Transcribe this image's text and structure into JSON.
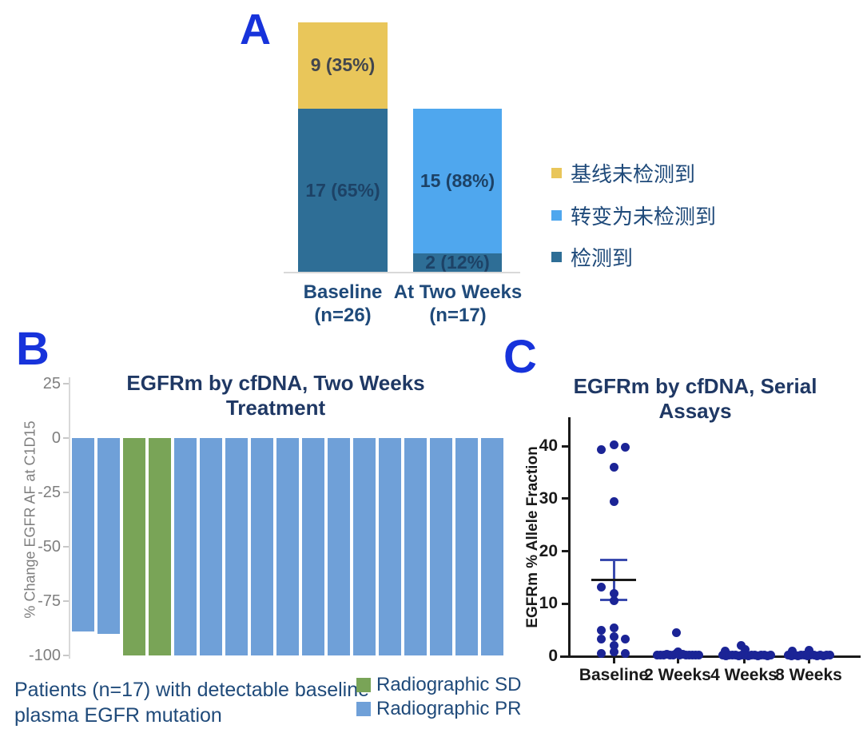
{
  "figure": {
    "panels": [
      {
        "id": "A",
        "label": "A"
      },
      {
        "id": "B",
        "label": "B"
      },
      {
        "id": "C",
        "label": "C"
      }
    ]
  },
  "colors": {
    "panel_letter": "#1733db",
    "navy_text": "#1f4a7a",
    "title_navy": "#1f3864",
    "axis_gray": "#7f7f7f",
    "light_line": "#d9d9d9",
    "tick_gray": "#c8c8c8",
    "a_yellow": "#e9c65a",
    "a_dark_blue": "#2e6e96",
    "a_light_blue": "#4fa7ee",
    "a_label_on_yellow": "#42464e",
    "a_label_navy": "#1d4266",
    "b_blue": "#6fa0d8",
    "b_green": "#79a457",
    "c_dot_navy": "#1b2496",
    "c_axis_black": "#1a1a1a",
    "c_error_blue": "#3a4aae"
  },
  "chart_data": [
    {
      "panel": "A",
      "type": "bar",
      "subtype": "stacked",
      "value_unit": "patients",
      "bars": [
        {
          "category": "Baseline",
          "n_label": "(n=26)",
          "total": 26,
          "segments": [
            {
              "series": "检测到",
              "count": 17,
              "label": "17 (65%)",
              "color_key": "a_dark_blue",
              "label_color_key": "a_label_navy"
            },
            {
              "series": "基线未检测到",
              "count": 9,
              "label": "9 (35%)",
              "color_key": "a_yellow",
              "label_color_key": "a_label_on_yellow"
            }
          ]
        },
        {
          "category": "At Two Weeks",
          "n_label": "(n=17)",
          "total": 17,
          "segments": [
            {
              "series": "检测到",
              "count": 2,
              "label": "2 (12%)",
              "color_key": "a_dark_blue",
              "label_color_key": "a_label_navy"
            },
            {
              "series": "转变为未检测到",
              "count": 15,
              "label": "15 (88%)",
              "color_key": "a_light_blue",
              "label_color_key": "a_label_navy"
            }
          ]
        }
      ],
      "legend": [
        {
          "label": "基线未检测到",
          "color_key": "a_yellow"
        },
        {
          "label": "转变为未检测到",
          "color_key": "a_light_blue"
        },
        {
          "label": "检测到",
          "color_key": "a_dark_blue"
        }
      ],
      "legend_position": "right"
    },
    {
      "panel": "B",
      "type": "bar",
      "subtype": "waterfall",
      "title": "EGFRm by cfDNA, Two Weeks Treatment",
      "ylabel": "% Change EGFR AF at C1D15",
      "yticks": [
        25,
        0,
        -25,
        -50,
        -75,
        -100
      ],
      "ylim": [
        25,
        -100
      ],
      "n_bars": 17,
      "values": [
        -89,
        -90,
        -100,
        -100,
        -100,
        -100,
        -100,
        -100,
        -100,
        -100,
        -100,
        -100,
        -100,
        -100,
        -100,
        -100,
        -100
      ],
      "responses": [
        "PR",
        "PR",
        "SD",
        "SD",
        "PR",
        "PR",
        "PR",
        "PR",
        "PR",
        "PR",
        "PR",
        "PR",
        "PR",
        "PR",
        "PR",
        "PR",
        "PR"
      ],
      "legend": [
        {
          "label": "Radiographic SD",
          "color_key": "b_green"
        },
        {
          "label": "Radiographic PR",
          "color_key": "b_blue"
        }
      ],
      "legend_position": "bottom-right",
      "caption_line1": "Patients (n=17) with detectable baseline",
      "caption_line2": "plasma EGFR mutation"
    },
    {
      "panel": "C",
      "type": "scatter",
      "title": "EGFRm by cfDNA, Serial Assays",
      "ylabel": "EGFRm % Allele Fraction",
      "yticks": [
        0,
        10,
        20,
        30,
        40
      ],
      "ylim": [
        0,
        44
      ],
      "categories": [
        "Baseline",
        "2 Weeks",
        "4 Weeks",
        "8 Weeks"
      ],
      "series": [
        {
          "category": "Baseline",
          "points": [
            [
              -16,
              39.3
            ],
            [
              0,
              40.3
            ],
            [
              14,
              39.8
            ],
            [
              0,
              36
            ],
            [
              0,
              29.5
            ],
            [
              -16,
              13.2
            ],
            [
              0,
              12
            ],
            [
              0,
              10.5
            ],
            [
              -16,
              5.0
            ],
            [
              0,
              5.4
            ],
            [
              -16,
              3.2
            ],
            [
              0,
              3.8
            ],
            [
              14,
              3.2
            ],
            [
              0,
              2.1
            ],
            [
              -16,
              0.6
            ],
            [
              0,
              0.9
            ],
            [
              14,
              0.6
            ]
          ]
        },
        {
          "category": "2 Weeks",
          "points": [
            [
              -2,
              4.5
            ],
            [
              -26,
              0.2
            ],
            [
              -22,
              0.3
            ],
            [
              -18,
              0.2
            ],
            [
              -14,
              0.4
            ],
            [
              -10,
              0.2
            ],
            [
              -6,
              0.3
            ],
            [
              -2,
              0.5
            ],
            [
              0,
              0.8
            ],
            [
              2,
              0.3
            ],
            [
              6,
              0.4
            ],
            [
              10,
              0.2
            ],
            [
              14,
              0.3
            ],
            [
              18,
              0.2
            ],
            [
              22,
              0.3
            ],
            [
              26,
              0.2
            ]
          ]
        },
        {
          "category": "4 Weeks",
          "points": [
            [
              -24,
              1.0
            ],
            [
              -4,
              2.0
            ],
            [
              1,
              1.3
            ],
            [
              -27,
              0.2
            ],
            [
              -23,
              0.1
            ],
            [
              -19,
              0.3
            ],
            [
              -15,
              0.2
            ],
            [
              -11,
              0.3
            ],
            [
              -7,
              0.1
            ],
            [
              -3,
              0.2
            ],
            [
              1,
              0.3
            ],
            [
              5,
              0.1
            ],
            [
              9,
              0.2
            ],
            [
              13,
              0.3
            ],
            [
              17,
              0.1
            ],
            [
              21,
              0.2
            ],
            [
              25,
              0.3
            ],
            [
              29,
              0.1
            ],
            [
              33,
              0.2
            ]
          ]
        },
        {
          "category": "8 Weeks",
          "points": [
            [
              -21,
              1.0
            ],
            [
              0,
              1.2
            ],
            [
              -26,
              0.2
            ],
            [
              -22,
              0.1
            ],
            [
              -18,
              0.3
            ],
            [
              -14,
              0.1
            ],
            [
              -10,
              0.2
            ],
            [
              -6,
              0.3
            ],
            [
              -2,
              0.1
            ],
            [
              2,
              0.2
            ],
            [
              6,
              0.3
            ],
            [
              10,
              0.1
            ],
            [
              14,
              0.2
            ],
            [
              18,
              0.1
            ],
            [
              22,
              0.3
            ],
            [
              26,
              0.2
            ]
          ]
        }
      ],
      "baseline_stats": {
        "mean": 14.6,
        "upper": 18.4,
        "lower": 10.7
      }
    }
  ]
}
